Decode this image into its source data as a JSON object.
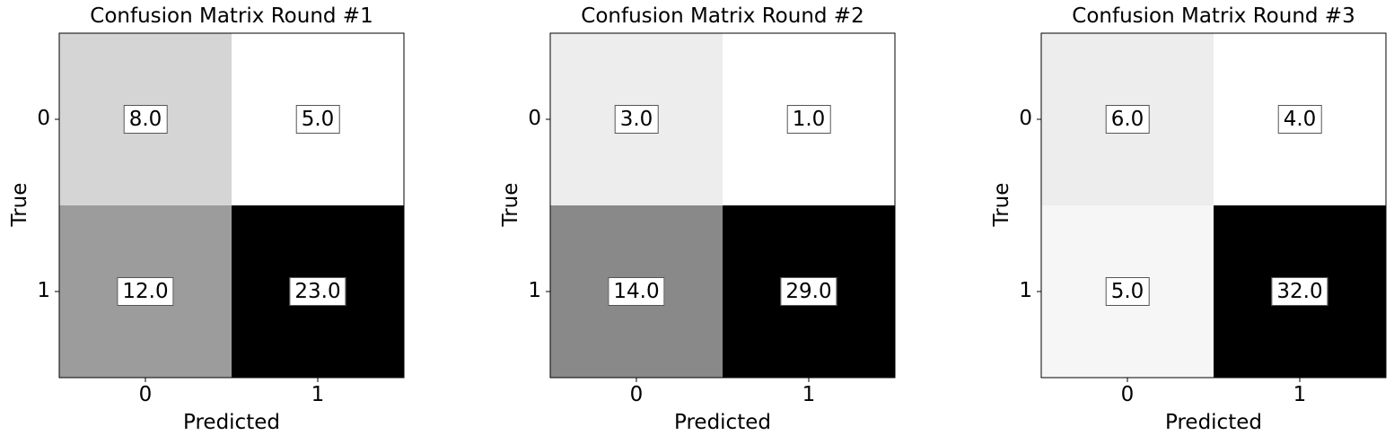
{
  "chart_data": [
    {
      "type": "heatmap",
      "title": "Confusion Matrix Round #1",
      "xlabel": "Predicted",
      "ylabel": "True",
      "x_ticks": [
        "0",
        "1"
      ],
      "y_ticks": [
        "0",
        "1"
      ],
      "values": [
        [
          8.0,
          5.0
        ],
        [
          12.0,
          23.0
        ]
      ],
      "value_labels": [
        [
          "8.0",
          "5.0"
        ],
        [
          "12.0",
          "23.0"
        ]
      ],
      "colormap": "Greys",
      "grid": false
    },
    {
      "type": "heatmap",
      "title": "Confusion Matrix Round #2",
      "xlabel": "Predicted",
      "ylabel": "True",
      "x_ticks": [
        "0",
        "1"
      ],
      "y_ticks": [
        "0",
        "1"
      ],
      "values": [
        [
          3.0,
          1.0
        ],
        [
          14.0,
          29.0
        ]
      ],
      "value_labels": [
        [
          "3.0",
          "1.0"
        ],
        [
          "14.0",
          "29.0"
        ]
      ],
      "colormap": "Greys",
      "grid": false
    },
    {
      "type": "heatmap",
      "title": "Confusion Matrix Round #3",
      "xlabel": "Predicted",
      "ylabel": "True",
      "x_ticks": [
        "0",
        "1"
      ],
      "y_ticks": [
        "0",
        "1"
      ],
      "values": [
        [
          6.0,
          4.0
        ],
        [
          5.0,
          32.0
        ]
      ],
      "value_labels": [
        [
          "6.0",
          "4.0"
        ],
        [
          "5.0",
          "32.0"
        ]
      ],
      "colormap": "Greys",
      "grid": false
    }
  ]
}
